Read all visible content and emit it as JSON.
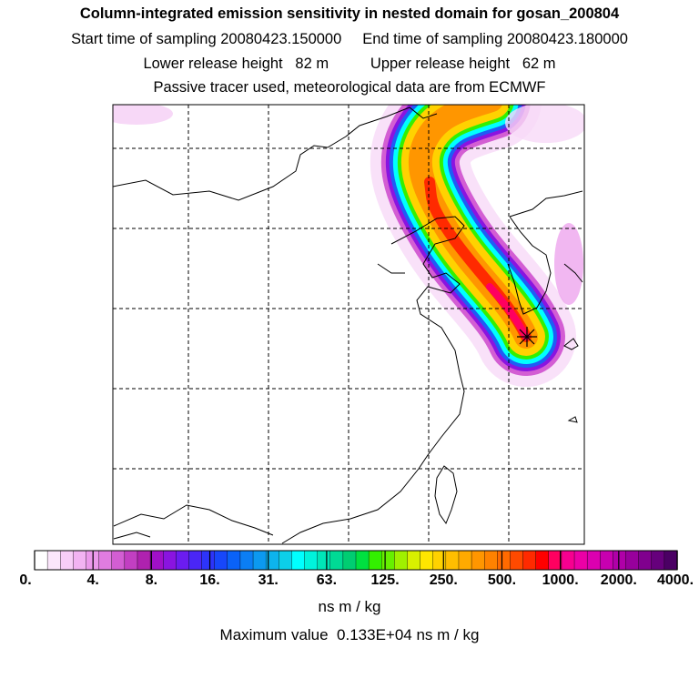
{
  "header": {
    "title": "Column-integrated emission sensitivity in nested domain for gosan_200804",
    "sampling_line": "Start time of sampling 20080423.150000     End time of sampling 20080423.180000",
    "release_line": "Lower release height   82 m          Upper release height   62 m",
    "tracer_line": "Passive tracer used, meteorological data are from ECMWF"
  },
  "colorbar": {
    "tick_labels": [
      "0.",
      "4.",
      "8.",
      "16.",
      "31.",
      "63.",
      "125.",
      "250.",
      "500.",
      "1000.",
      "2000.",
      "4000."
    ],
    "colors": [
      "#ffffff",
      "#fbe6fb",
      "#f7cdf7",
      "#f2b3f2",
      "#eb99eb",
      "#e07ce0",
      "#d35ed3",
      "#c23fc2",
      "#af22af",
      "#a010c8",
      "#8a14e0",
      "#6b1cf0",
      "#4a26f6",
      "#2d34fa",
      "#1747fb",
      "#0a62f8",
      "#0b7ef4",
      "#0c99f0",
      "#0db4ed",
      "#0ccfe9",
      "#00ffff",
      "#00f3dc",
      "#00e6b8",
      "#00da95",
      "#00cd72",
      "#00e040",
      "#33f000",
      "#66f000",
      "#a0f000",
      "#d8f000",
      "#ffe600",
      "#ffd200",
      "#ffbe00",
      "#ffaa00",
      "#ff9600",
      "#ff8200",
      "#ff6a00",
      "#ff4a00",
      "#ff2a00",
      "#ff0000",
      "#ff0060",
      "#f70090",
      "#ec00a6",
      "#dc00b0",
      "#c800b0",
      "#b000a8",
      "#98009c",
      "#80008e",
      "#66007c",
      "#4b0064"
    ],
    "units": "ns m / kg",
    "max_value_text": "Maximum value  0.133E+04 ns m / kg"
  },
  "chart_data": {
    "type": "heatmap",
    "title": "Column-integrated emission sensitivity in nested domain for gosan_200804",
    "subtitle": "Start time of sampling 20080423.150000, End time of sampling 20080423.180000",
    "units": "ns m / kg",
    "scale_breaks": [
      0,
      4,
      8,
      16,
      31,
      63,
      125,
      250,
      500,
      1000,
      2000,
      4000
    ],
    "max_value": 1330,
    "receptor": "Gosan",
    "grid": true,
    "plume_centerline": [
      [
        578,
        370
      ],
      [
        560,
        330
      ],
      [
        520,
        290
      ],
      [
        490,
        245
      ],
      [
        470,
        200
      ],
      [
        468,
        160
      ],
      [
        490,
        130
      ],
      [
        530,
        116
      ]
    ],
    "colorbar_position": "bottom"
  }
}
